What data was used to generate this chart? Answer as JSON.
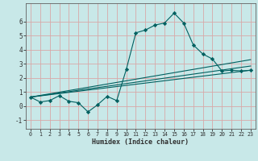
{
  "title": "",
  "xlabel": "Humidex (Indice chaleur)",
  "bg_color": "#c8e8e8",
  "grid_color": "#d8a8a8",
  "line_color": "#006060",
  "xlim": [
    -0.5,
    23.5
  ],
  "ylim": [
    -1.6,
    7.3
  ],
  "yticks": [
    -1,
    0,
    1,
    2,
    3,
    4,
    5,
    6
  ],
  "xticks": [
    0,
    1,
    2,
    3,
    4,
    5,
    6,
    7,
    8,
    9,
    10,
    11,
    12,
    13,
    14,
    15,
    16,
    17,
    18,
    19,
    20,
    21,
    22,
    23
  ],
  "series1_x": [
    0,
    1,
    2,
    3,
    4,
    5,
    6,
    7,
    8,
    9,
    10,
    11,
    12,
    13,
    14,
    15,
    16,
    17,
    18,
    19,
    20,
    21,
    22,
    23
  ],
  "series1_y": [
    0.65,
    0.3,
    0.4,
    0.75,
    0.35,
    0.25,
    -0.4,
    0.1,
    0.7,
    0.4,
    2.6,
    5.2,
    5.4,
    5.75,
    5.9,
    6.6,
    5.9,
    4.35,
    3.7,
    3.35,
    2.5,
    2.55,
    2.5,
    2.55
  ],
  "series2_x": [
    0,
    23
  ],
  "series2_y": [
    0.65,
    2.55
  ],
  "series3_x": [
    0,
    23
  ],
  "series3_y": [
    0.65,
    2.85
  ],
  "series4_x": [
    0,
    23
  ],
  "series4_y": [
    0.65,
    3.3
  ]
}
